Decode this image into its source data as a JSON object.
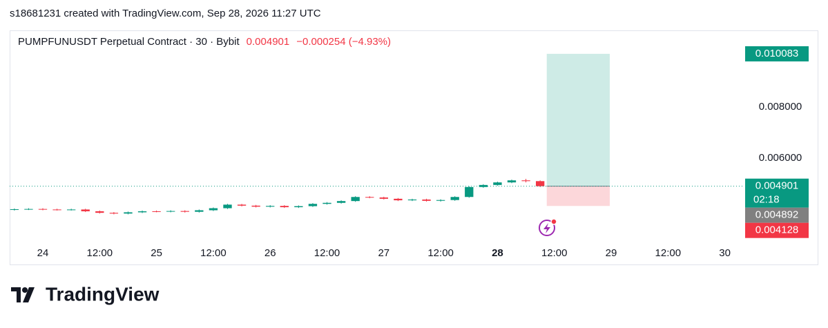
{
  "header": {
    "credit": "s18681231 created with TradingView.com, Sep 28, 2026 11:27 UTC"
  },
  "chart_data": {
    "type": "candlestick",
    "symbol": "PUMPFUNUSDT Perpetual Contract · 30 · Bybit",
    "last_price": "0.004901",
    "change": "−0.000254 (−4.93%)",
    "up_color": "#089981",
    "down_color": "#f23645",
    "x": [
      -6,
      -3,
      0,
      3,
      6,
      9,
      12,
      15,
      18,
      21,
      24,
      27,
      30,
      33,
      36,
      39,
      42,
      45,
      48,
      51,
      54,
      57,
      60,
      63,
      66,
      69,
      72,
      75,
      78,
      81,
      84,
      87,
      90,
      93,
      96,
      99,
      102,
      105
    ],
    "open": [
      0.00398,
      0.004,
      0.00401,
      0.00399,
      0.00398,
      0.00399,
      0.00392,
      0.00386,
      0.00383,
      0.00388,
      0.00392,
      0.00391,
      0.00393,
      0.0039,
      0.00396,
      0.00404,
      0.00418,
      0.00414,
      0.0041,
      0.00413,
      0.00408,
      0.00412,
      0.00421,
      0.00425,
      0.00432,
      0.00448,
      0.00446,
      0.00441,
      0.00435,
      0.00438,
      0.00433,
      0.00436,
      0.00448,
      0.00487,
      0.00495,
      0.00505,
      0.00513,
      0.0051
    ],
    "high": [
      0.00403,
      0.00404,
      0.00404,
      0.00402,
      0.00402,
      0.00402,
      0.00395,
      0.00389,
      0.00391,
      0.00395,
      0.00395,
      0.00396,
      0.00396,
      0.00399,
      0.00407,
      0.00421,
      0.00421,
      0.00417,
      0.00416,
      0.00416,
      0.00415,
      0.00424,
      0.00428,
      0.00435,
      0.00451,
      0.00451,
      0.00449,
      0.00444,
      0.00441,
      0.00441,
      0.00439,
      0.00451,
      0.0049,
      0.00498,
      0.00508,
      0.00516,
      0.00519,
      0.00513
    ],
    "low": [
      0.00395,
      0.00397,
      0.00396,
      0.00395,
      0.00395,
      0.00389,
      0.00383,
      0.0038,
      0.0038,
      0.00385,
      0.00388,
      0.00388,
      0.00387,
      0.00387,
      0.00393,
      0.00401,
      0.00411,
      0.00407,
      0.00407,
      0.00405,
      0.00405,
      0.00409,
      0.00418,
      0.00422,
      0.00429,
      0.00443,
      0.00438,
      0.00432,
      0.00432,
      0.0043,
      0.0043,
      0.00433,
      0.00445,
      0.00484,
      0.00492,
      0.00502,
      0.00505,
      0.00487
    ],
    "close": [
      0.004,
      0.00401,
      0.00399,
      0.00398,
      0.00399,
      0.00392,
      0.00386,
      0.00383,
      0.00388,
      0.00392,
      0.00391,
      0.00393,
      0.0039,
      0.00396,
      0.00404,
      0.00418,
      0.00414,
      0.0041,
      0.00413,
      0.00408,
      0.00412,
      0.00421,
      0.00425,
      0.00432,
      0.00448,
      0.00446,
      0.00441,
      0.00435,
      0.00438,
      0.00433,
      0.00436,
      0.00448,
      0.00487,
      0.00495,
      0.00505,
      0.00513,
      0.0051,
      0.004901
    ],
    "xlim": [
      -7,
      147.7
    ],
    "xticks": [
      {
        "value": 0,
        "label": "24"
      },
      {
        "value": 12,
        "label": "12:00"
      },
      {
        "value": 24,
        "label": "25"
      },
      {
        "value": 36,
        "label": "12:00"
      },
      {
        "value": 48,
        "label": "26"
      },
      {
        "value": 60,
        "label": "12:00"
      },
      {
        "value": 72,
        "label": "27"
      },
      {
        "value": 84,
        "label": "12:00"
      },
      {
        "value": 96,
        "label": "28"
      },
      {
        "value": 108,
        "label": "12:00"
      },
      {
        "value": 120,
        "label": "29"
      },
      {
        "value": 132,
        "label": "12:00"
      },
      {
        "value": 144,
        "label": "30"
      }
    ],
    "ylim": [
      0.002676,
      0.011
    ],
    "yticks": [
      {
        "value": 0.006,
        "label": "0.006000"
      },
      {
        "value": 0.008,
        "label": "0.008000"
      }
    ],
    "position": {
      "start": 106.4,
      "end": 119.7,
      "entry": 0.004901,
      "target": 0.010083,
      "stop": 0.004128
    },
    "price_labels": [
      {
        "value": 0.010083,
        "color": "#089981"
      },
      {
        "value": 0.004901,
        "countdown": "02:18",
        "color": "#089981"
      },
      {
        "value": 0.004892,
        "color": "#808080"
      },
      {
        "value": 0.004128,
        "color": "#f23645"
      }
    ]
  },
  "footer": {
    "brand": "TradingView"
  }
}
